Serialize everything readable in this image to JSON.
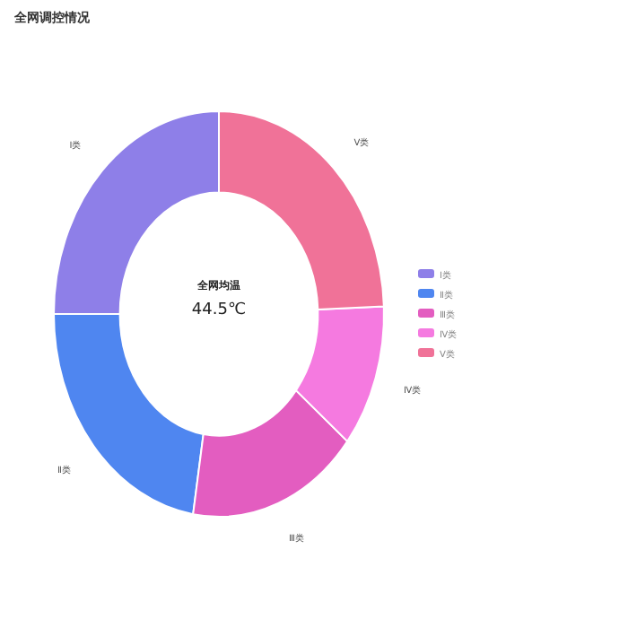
{
  "chart_data": {
    "type": "donut",
    "title": "全网调控情况",
    "categories": [
      "Ⅰ类",
      "Ⅱ类",
      "Ⅲ类",
      "Ⅳ类",
      "Ⅴ类"
    ],
    "values": [
      25,
      22.5,
      16.7,
      11.4,
      24.4
    ],
    "colors": [
      "#8e7fe8",
      "#4f86f0",
      "#e35dc0",
      "#f57ae0",
      "#f07298"
    ],
    "annotations": [
      "全网均温",
      "44.5℃"
    ],
    "legend": "right"
  }
}
